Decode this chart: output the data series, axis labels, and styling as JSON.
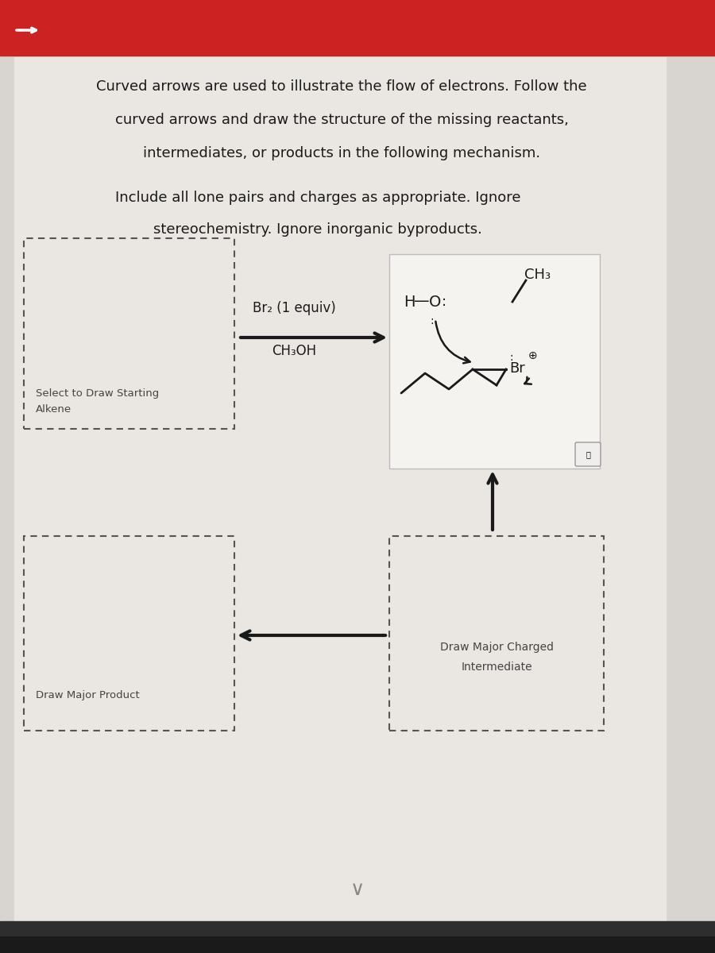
{
  "bg_color": "#d8d4d0",
  "header_bg": "#cc2222",
  "main_bg": "#eae6e2",
  "title_lines": [
    "Curved arrows are used to illustrate the flow of electrons. Follow the",
    "curved arrows and draw the structure of the missing reactants,",
    "intermediates, or products in the following mechanism."
  ],
  "subtitle_lines": [
    "Include all lone pairs and charges as appropriate. Ignore",
    "stereochemistry. Ignore inorganic byproducts."
  ],
  "box1_label_line1": "Select to Draw Starting",
  "box1_label_line2": "Alkene",
  "box2_label_line1": "Draw Major Charged",
  "box2_label_line2": "Intermediate",
  "box3_label": "Draw Major Product",
  "reagent_line1": "Br₂ (1 equiv)",
  "reagent_line2": "CH₃OH",
  "text_color": "#1a1a1a",
  "dashed_color": "#555555",
  "arrow_color": "#1a1a1a"
}
